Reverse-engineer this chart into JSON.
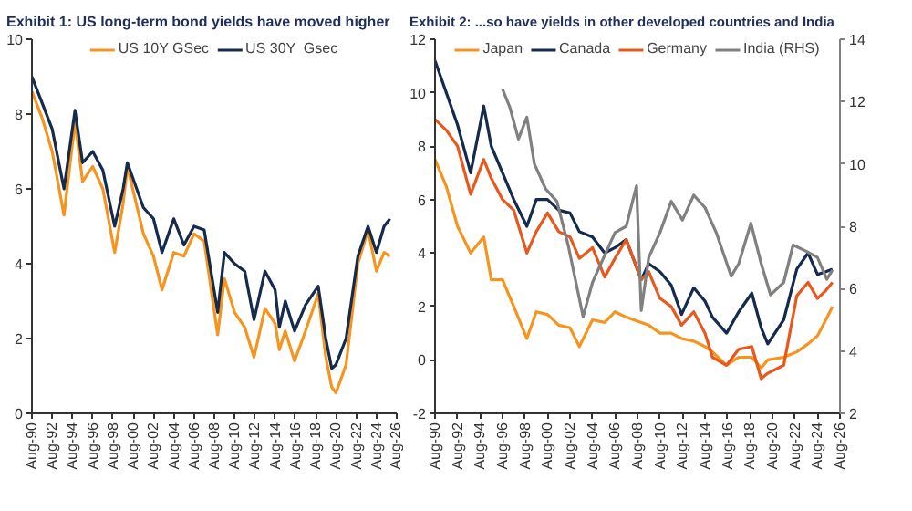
{
  "chart_data": [
    {
      "type": "line",
      "title": "Exhibit 1: US long-term bond yields have moved higher",
      "legend": "top",
      "grid": false,
      "xlim": [
        "1990-08",
        "2026-08"
      ],
      "ylim": [
        0,
        10
      ],
      "yticks": [
        0,
        2,
        4,
        6,
        8,
        10
      ],
      "xticks": [
        {
          "value": "1990-08",
          "label": "Aug-90"
        },
        {
          "value": "1992-08",
          "label": "Aug-92"
        },
        {
          "value": "1994-08",
          "label": "Aug-94"
        },
        {
          "value": "1996-08",
          "label": "Aug-96"
        },
        {
          "value": "1998-08",
          "label": "Aug-98"
        },
        {
          "value": "2000-08",
          "label": "Aug-00"
        },
        {
          "value": "2002-08",
          "label": "Aug-02"
        },
        {
          "value": "2004-08",
          "label": "Aug-04"
        },
        {
          "value": "2006-08",
          "label": "Aug-06"
        },
        {
          "value": "2008-08",
          "label": "Aug-08"
        },
        {
          "value": "2010-08",
          "label": "Aug-10"
        },
        {
          "value": "2012-08",
          "label": "Aug-12"
        },
        {
          "value": "2014-08",
          "label": "Aug-14"
        },
        {
          "value": "2016-08",
          "label": "Aug-16"
        },
        {
          "value": "2018-08",
          "label": "Aug-18"
        },
        {
          "value": "2020-08",
          "label": "Aug-20"
        },
        {
          "value": "2022-08",
          "label": "Aug-22"
        },
        {
          "value": "2024-08",
          "label": "Aug-24"
        },
        {
          "value": "2026-08",
          "label": "Aug-26"
        }
      ],
      "x": [
        "1990-08",
        "1991-08",
        "1992-08",
        "1993-10",
        "1994-11",
        "1995-08",
        "1996-08",
        "1997-08",
        "1998-10",
        "1999-08",
        "2000-01",
        "2001-08",
        "2002-08",
        "2003-06",
        "2004-08",
        "2005-08",
        "2006-08",
        "2007-08",
        "2008-12",
        "2009-08",
        "2010-08",
        "2011-08",
        "2012-07",
        "2013-08",
        "2014-08",
        "2015-01",
        "2015-08",
        "2016-07",
        "2017-08",
        "2018-11",
        "2019-08",
        "2020-03",
        "2020-08",
        "2021-08",
        "2022-10",
        "2023-10",
        "2024-08",
        "2025-05",
        "2025-12"
      ],
      "series": [
        {
          "name": "US 10Y GSec",
          "color": "#f7941d",
          "values": [
            8.6,
            7.9,
            7.0,
            5.3,
            7.8,
            6.2,
            6.6,
            6.0,
            4.3,
            5.6,
            6.6,
            4.8,
            4.2,
            3.3,
            4.3,
            4.2,
            4.8,
            4.6,
            2.1,
            3.6,
            2.7,
            2.3,
            1.5,
            2.8,
            2.4,
            1.7,
            2.2,
            1.4,
            2.2,
            3.2,
            1.5,
            0.7,
            0.55,
            1.3,
            4.0,
            4.9,
            3.8,
            4.3,
            4.2
          ]
        },
        {
          "name": "US 30Y  Gsec",
          "color": "#142b4d",
          "values": [
            9.0,
            8.3,
            7.6,
            6.0,
            8.1,
            6.7,
            7.0,
            6.5,
            5.0,
            6.0,
            6.7,
            5.5,
            5.2,
            4.3,
            5.2,
            4.5,
            5.0,
            4.9,
            2.7,
            4.3,
            4.0,
            3.8,
            2.5,
            3.8,
            3.3,
            2.3,
            3.0,
            2.2,
            2.9,
            3.4,
            2.0,
            1.2,
            1.3,
            2.0,
            4.2,
            5.0,
            4.3,
            5.0,
            5.2
          ]
        }
      ]
    },
    {
      "type": "line",
      "title": "Exhibit 2: ...so have yields in other developed countries and India",
      "legend": "top",
      "grid": false,
      "xlim": [
        "1990-08",
        "2026-08"
      ],
      "ylim": [
        -2,
        12
      ],
      "yticks": [
        -2,
        0,
        2,
        4,
        6,
        8,
        10,
        12
      ],
      "y2lim": [
        2,
        14
      ],
      "y2ticks": [
        2,
        4,
        6,
        8,
        10,
        12,
        14
      ],
      "xticks": [
        {
          "value": "1990-08",
          "label": "Aug-90"
        },
        {
          "value": "1992-08",
          "label": "Aug-92"
        },
        {
          "value": "1994-08",
          "label": "Aug-94"
        },
        {
          "value": "1996-08",
          "label": "Aug-96"
        },
        {
          "value": "1998-08",
          "label": "Aug-98"
        },
        {
          "value": "2000-08",
          "label": "Aug-00"
        },
        {
          "value": "2002-08",
          "label": "Aug-02"
        },
        {
          "value": "2004-08",
          "label": "Aug-04"
        },
        {
          "value": "2006-08",
          "label": "Aug-06"
        },
        {
          "value": "2008-08",
          "label": "Aug-08"
        },
        {
          "value": "2010-08",
          "label": "Aug-10"
        },
        {
          "value": "2012-08",
          "label": "Aug-12"
        },
        {
          "value": "2014-08",
          "label": "Aug-14"
        },
        {
          "value": "2016-08",
          "label": "Aug-16"
        },
        {
          "value": "2018-08",
          "label": "Aug-18"
        },
        {
          "value": "2020-08",
          "label": "Aug-20"
        },
        {
          "value": "2022-08",
          "label": "Aug-22"
        },
        {
          "value": "2024-08",
          "label": "Aug-24"
        },
        {
          "value": "2026-08",
          "label": "Aug-26"
        }
      ],
      "x": [
        "1990-08",
        "1991-08",
        "1992-08",
        "1993-10",
        "1994-12",
        "1995-08",
        "1996-08",
        "1997-08",
        "1998-10",
        "1999-08",
        "2000-08",
        "2001-08",
        "2002-08",
        "2003-06",
        "2004-08",
        "2005-09",
        "2006-08",
        "2007-08",
        "2008-12",
        "2009-08",
        "2010-08",
        "2011-08",
        "2012-07",
        "2013-08",
        "2014-08",
        "2015-04",
        "2016-07",
        "2017-08",
        "2018-10",
        "2019-08",
        "2020-03",
        "2021-08",
        "2022-10",
        "2023-10",
        "2024-08",
        "2025-05",
        "2025-12"
      ],
      "series": [
        {
          "name": "Japan",
          "color": "#f7941d",
          "values": [
            7.5,
            6.5,
            5.0,
            4.0,
            4.6,
            3.0,
            3.0,
            2.0,
            0.8,
            1.8,
            1.7,
            1.3,
            1.2,
            0.5,
            1.5,
            1.4,
            1.8,
            1.6,
            1.4,
            1.3,
            1.0,
            1.0,
            0.8,
            0.7,
            0.5,
            0.3,
            -0.2,
            0.1,
            0.1,
            -0.3,
            0.0,
            0.1,
            0.3,
            0.6,
            0.9,
            1.5,
            2.0
          ]
        },
        {
          "name": "Canada",
          "color": "#142b4d",
          "values": [
            11.2,
            10.0,
            8.8,
            7.0,
            9.5,
            8.0,
            7.0,
            6.0,
            5.0,
            6.0,
            6.0,
            5.6,
            5.5,
            4.8,
            4.6,
            4.0,
            4.2,
            4.5,
            3.0,
            3.6,
            3.3,
            2.8,
            1.7,
            2.7,
            2.2,
            1.6,
            1.0,
            1.8,
            2.5,
            1.2,
            0.6,
            1.5,
            3.4,
            4.0,
            3.2,
            3.3,
            3.4
          ]
        },
        {
          "name": "Germany",
          "color": "#e8581c",
          "values": [
            9.0,
            8.6,
            8.0,
            6.2,
            7.5,
            6.8,
            6.0,
            5.6,
            4.0,
            4.8,
            5.5,
            4.8,
            4.6,
            3.8,
            4.2,
            3.1,
            3.8,
            4.5,
            3.0,
            3.3,
            2.3,
            2.0,
            1.3,
            1.8,
            1.0,
            0.1,
            -0.2,
            0.4,
            0.5,
            -0.7,
            -0.5,
            -0.2,
            2.4,
            2.9,
            2.3,
            2.6,
            2.9
          ]
        },
        {
          "name": "India (RHS)",
          "color": "#808080",
          "axis": "y2",
          "x": [
            "1996-08",
            "1997-04",
            "1998-01",
            "1998-10",
            "1999-06",
            "2000-06",
            "2001-06",
            "2002-06",
            "2003-10",
            "2004-08",
            "2005-08",
            "2006-08",
            "2007-08",
            "2008-07",
            "2008-12",
            "2009-08",
            "2010-08",
            "2011-08",
            "2012-08",
            "2013-08",
            "2014-08",
            "2015-08",
            "2016-12",
            "2017-08",
            "2018-09",
            "2019-08",
            "2020-06",
            "2021-08",
            "2022-06",
            "2023-08",
            "2024-08",
            "2025-06",
            "2025-12"
          ],
          "values": [
            12.4,
            11.8,
            10.8,
            11.5,
            10.0,
            9.2,
            8.8,
            7.4,
            5.1,
            6.2,
            7.0,
            7.8,
            8.0,
            9.3,
            5.3,
            7.0,
            7.8,
            8.8,
            8.2,
            9.0,
            8.6,
            7.8,
            6.4,
            6.8,
            8.1,
            6.8,
            5.8,
            6.2,
            7.4,
            7.2,
            7.0,
            6.3,
            6.6
          ]
        }
      ]
    }
  ]
}
